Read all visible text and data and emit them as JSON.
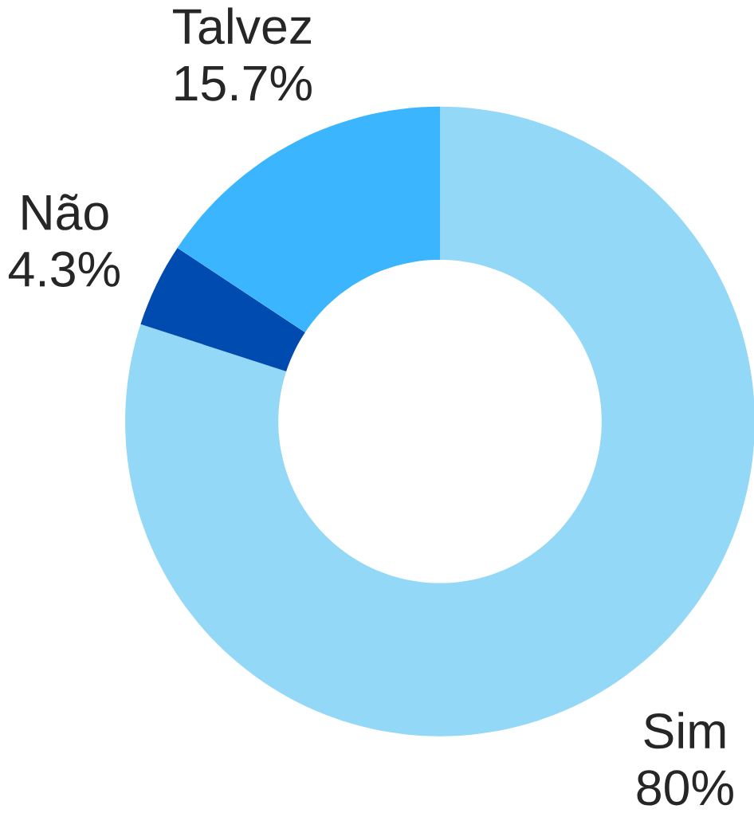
{
  "chart_data": {
    "type": "donut",
    "categories": [
      "Sim",
      "Não",
      "Talvez"
    ],
    "values": [
      80,
      4.3,
      15.7
    ],
    "value_labels": [
      "80%",
      "4.3%",
      "15.7%"
    ],
    "colors": [
      "#93d8f6",
      "#004bb0",
      "#3bb6fe"
    ]
  }
}
